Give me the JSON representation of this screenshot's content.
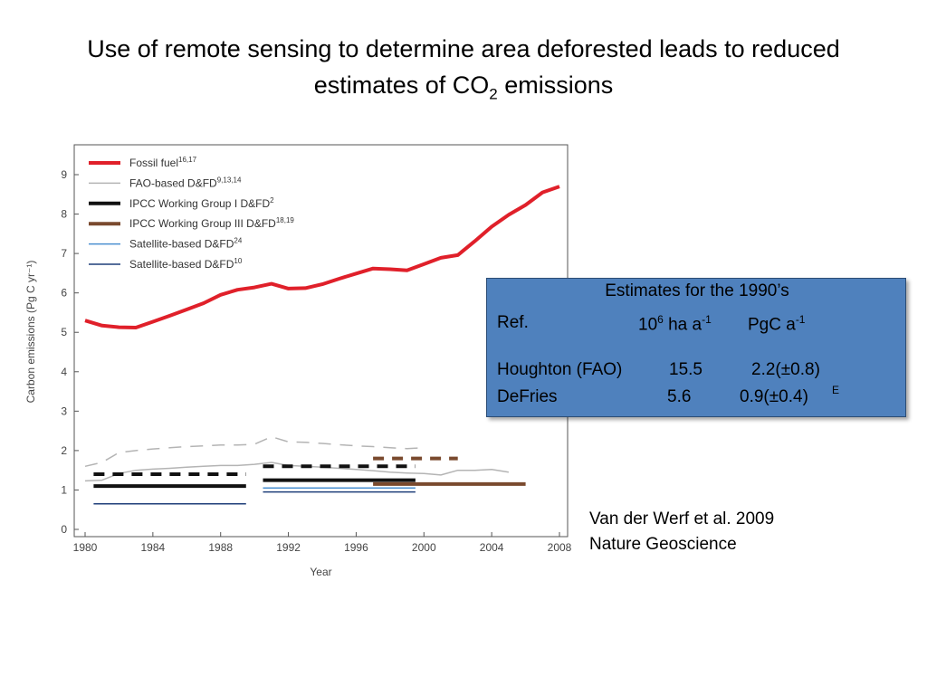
{
  "slide": {
    "title_line1": "Use of remote sensing to determine area deforested leads to reduced",
    "title_line2_pre": "estimates of CO",
    "title_line2_sub": "2",
    "title_line2_post": " emissions"
  },
  "estimates_box": {
    "heading": "Estimates for the 1990’s",
    "col_ref": "Ref.",
    "col_area_base": "10",
    "col_area_exp": "6",
    "col_area_unit": " ha a",
    "col_area_unit_exp": "-1",
    "col_emis": "PgC a",
    "col_emis_exp": "-1",
    "rows": [
      {
        "ref": "Houghton (FAO)",
        "area": "15.5",
        "emis": "2.2(±0.8)",
        "note": ""
      },
      {
        "ref": "DeFries",
        "area": "5.6",
        "emis": "0.9(±0.4)",
        "note": "E"
      }
    ]
  },
  "citation": {
    "line1": "Van der Werf et al. 2009",
    "line2": "Nature Geoscience"
  },
  "chart_data": {
    "type": "line",
    "xlabel": "Year",
    "ylabel": "Carbon emissions (Pg C yr⁻¹)",
    "xlim": [
      1979.5,
      2008.5
    ],
    "ylim": [
      0,
      9.5
    ],
    "xticks": [
      1980,
      1984,
      1988,
      1992,
      1996,
      2000,
      2004,
      2008
    ],
    "yticks": [
      0,
      1,
      2,
      3,
      4,
      5,
      6,
      7,
      8,
      9
    ],
    "legend_position": "top-left",
    "series": [
      {
        "name": "Fossil fuel",
        "sup": "16,17",
        "color": "#e0202a",
        "width": "thick",
        "style": "solid",
        "x": [
          1980,
          1981,
          1982,
          1983,
          1984,
          1985,
          1986,
          1987,
          1988,
          1989,
          1990,
          1991,
          1992,
          1993,
          1994,
          1995,
          1996,
          1997,
          1998,
          1999,
          2000,
          2001,
          2002,
          2003,
          2004,
          2005,
          2006,
          2007,
          2008
        ],
        "y": [
          5.3,
          5.17,
          5.13,
          5.12,
          5.27,
          5.42,
          5.58,
          5.74,
          5.95,
          6.08,
          6.14,
          6.23,
          6.11,
          6.12,
          6.22,
          6.36,
          6.49,
          6.62,
          6.6,
          6.57,
          6.73,
          6.89,
          6.96,
          7.31,
          7.68,
          7.98,
          8.23,
          8.55,
          8.7
        ]
      },
      {
        "name": "FAO-based D&FD",
        "sup": "9,13,14",
        "color": "#b4b4b4",
        "width": "thin",
        "style": "solid",
        "x": [
          1980,
          1981,
          1982,
          1983,
          1984,
          1985,
          1986,
          1987,
          1988,
          1989,
          1990,
          1991,
          1992,
          1993,
          1994,
          1995,
          1996,
          1997,
          1998,
          1999,
          2000,
          2001,
          2002,
          2003,
          2004,
          2005
        ],
        "y": [
          1.23,
          1.25,
          1.42,
          1.5,
          1.53,
          1.55,
          1.58,
          1.6,
          1.62,
          1.62,
          1.65,
          1.7,
          1.62,
          1.6,
          1.58,
          1.55,
          1.52,
          1.49,
          1.45,
          1.43,
          1.42,
          1.38,
          1.5,
          1.5,
          1.52,
          1.45
        ]
      },
      {
        "name": "FAO-based D&FD (upper)",
        "color": "#b4b4b4",
        "width": "thin",
        "style": "dashed",
        "x": [
          1980,
          1981,
          1982,
          1983,
          1984,
          1985,
          1986,
          1987,
          1988,
          1989,
          1990,
          1991,
          1992,
          1993,
          1994,
          1995,
          1996,
          1997,
          1998,
          1999,
          2000
        ],
        "y": [
          1.6,
          1.7,
          1.95,
          2.0,
          2.04,
          2.07,
          2.1,
          2.12,
          2.14,
          2.14,
          2.16,
          2.35,
          2.22,
          2.21,
          2.18,
          2.15,
          2.12,
          2.1,
          2.07,
          2.05,
          2.07
        ]
      },
      {
        "name": "IPCC Working Group I D&FD",
        "sup": "2",
        "color": "#111111",
        "width": "thick",
        "style": "solid",
        "x": [
          1980.5,
          1989.5
        ],
        "y": [
          1.1,
          1.1
        ]
      },
      {
        "name": "IPCC Working Group I D&FD (upper)",
        "color": "#111111",
        "width": "thick",
        "style": "dashed",
        "x": [
          1980.5,
          1989.5
        ],
        "y": [
          1.4,
          1.4
        ]
      },
      {
        "name": "IPCC Working Group I D&FD (1990s)",
        "color": "#111111",
        "width": "thick",
        "style": "solid",
        "x": [
          1990.5,
          1999.5
        ],
        "y": [
          1.25,
          1.25
        ]
      },
      {
        "name": "IPCC Working Group I D&FD (1990s upper)",
        "color": "#111111",
        "width": "thick",
        "style": "dashed",
        "x": [
          1990.5,
          1999.5
        ],
        "y": [
          1.6,
          1.6
        ]
      },
      {
        "name": "IPCC Working Group III D&FD",
        "sup": "18,19",
        "color": "#7a4a2e",
        "width": "thick",
        "style": "solid",
        "x": [
          1997,
          2006
        ],
        "y": [
          1.15,
          1.15
        ]
      },
      {
        "name": "IPCC Working Group III D&FD (upper)",
        "color": "#7a4a2e",
        "width": "thick",
        "style": "dashed",
        "x": [
          1997,
          2002
        ],
        "y": [
          1.8,
          1.8
        ]
      },
      {
        "name": "Satellite-based D&FD",
        "sup": "24",
        "color": "#4a8fd0",
        "width": "thin",
        "style": "solid",
        "x": [
          1990.5,
          1999.5
        ],
        "y": [
          1.05,
          1.05
        ]
      },
      {
        "name": "Satellite-based D&FD",
        "sup": "10",
        "color": "#1f3f7a",
        "width": "thin",
        "style": "solid",
        "x": [
          1980.5,
          1989.5
        ],
        "y": [
          0.65,
          0.65
        ]
      },
      {
        "name": "Satellite-based D&FD (1990s)",
        "color": "#1f3f7a",
        "width": "thin",
        "style": "solid",
        "x": [
          1990.5,
          1999.5
        ],
        "y": [
          0.95,
          0.95
        ]
      }
    ],
    "legend": [
      {
        "label": "Fossil fuel",
        "sup": "16,17",
        "color": "#e0202a",
        "width": "thick"
      },
      {
        "label": "FAO-based D&FD",
        "sup": "9,13,14",
        "color": "#b4b4b4",
        "width": "thin"
      },
      {
        "label": "IPCC Working Group I D&FD",
        "sup": "2",
        "color": "#111111",
        "width": "thick"
      },
      {
        "label": "IPCC Working Group III D&FD",
        "sup": "18,19",
        "color": "#7a4a2e",
        "width": "thick"
      },
      {
        "label": "Satellite-based D&FD",
        "sup": "24",
        "color": "#4a8fd0",
        "width": "thin"
      },
      {
        "label": "Satellite-based D&FD",
        "sup": "10",
        "color": "#1f3f7a",
        "width": "thin"
      }
    ]
  }
}
